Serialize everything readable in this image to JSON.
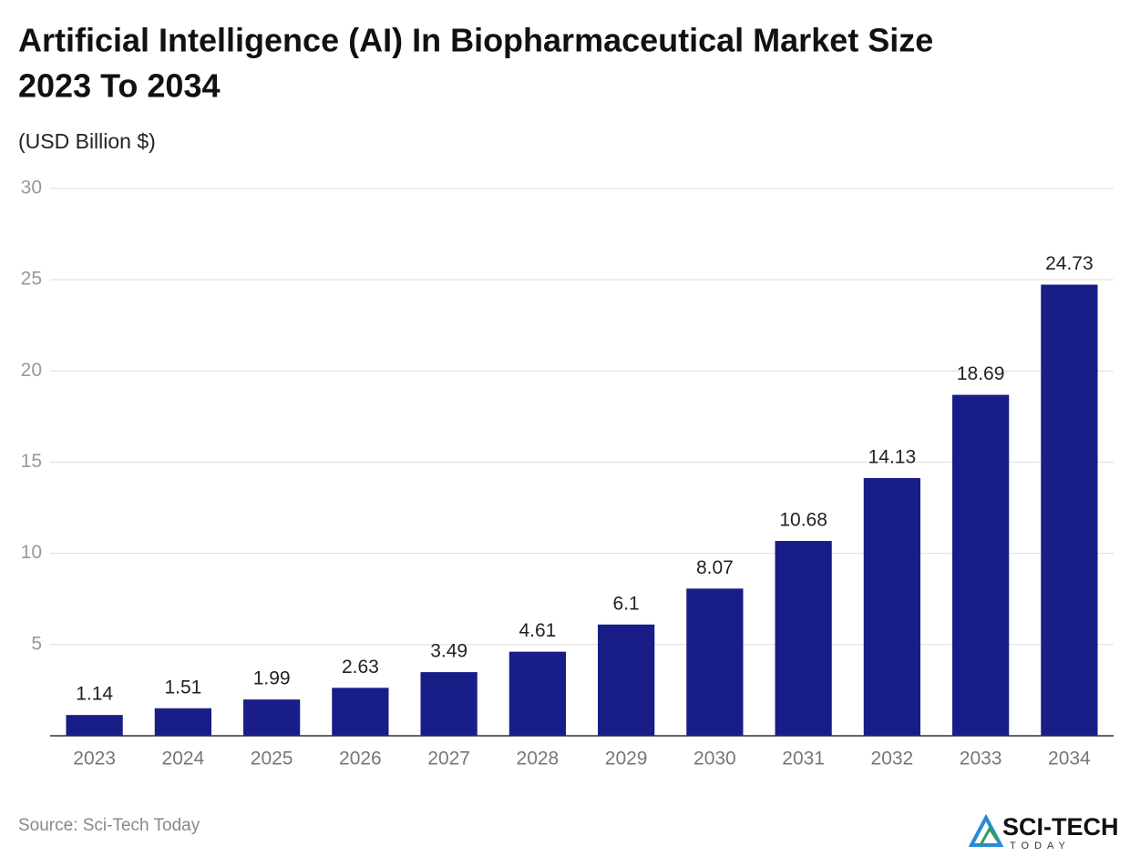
{
  "chart_data": {
    "type": "bar",
    "title": [
      "Artificial Intelligence (AI) In Biopharmaceutical Market Size",
      "2023 To 2034"
    ],
    "subtitle": "(USD Billion $)",
    "categories": [
      "2023",
      "2024",
      "2025",
      "2026",
      "2027",
      "2028",
      "2029",
      "2030",
      "2031",
      "2032",
      "2033",
      "2034"
    ],
    "values": [
      1.14,
      1.51,
      1.99,
      2.63,
      3.49,
      4.61,
      6.1,
      8.07,
      10.68,
      14.13,
      18.69,
      24.73
    ],
    "color": "#191d87",
    "ylim": [
      0,
      30
    ],
    "yticks": [
      5,
      10,
      15,
      20,
      25,
      30
    ],
    "grid": true,
    "source": "Source: Sci-Tech Today",
    "logo": {
      "name": "SCI-TECH",
      "tagline": "TODAY"
    }
  }
}
